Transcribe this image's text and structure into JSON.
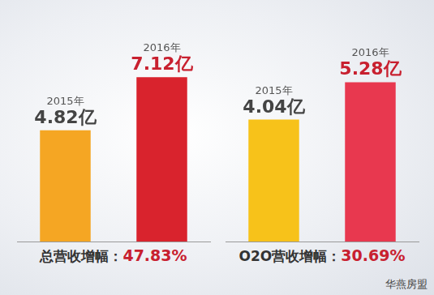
{
  "chart_data": [
    {
      "type": "bar",
      "categories": [
        "2015年",
        "2016年"
      ],
      "values": [
        4.82,
        7.12
      ],
      "value_labels": [
        "4.82亿",
        "7.12亿"
      ],
      "colors": [
        "#f5a623",
        "#d9232d"
      ],
      "ylim": [
        0,
        8.5
      ],
      "grid": false,
      "tick_labels": false,
      "data_labels": true,
      "annotation": "总营收增幅：47.83%"
    },
    {
      "type": "bar",
      "categories": [
        "2015年",
        "2016年"
      ],
      "values": [
        4.04,
        5.28
      ],
      "value_labels": [
        "4.04亿",
        "5.28亿"
      ],
      "colors": [
        "#f7c21a",
        "#e8384f"
      ],
      "ylim": [
        0,
        6.5
      ],
      "grid": false,
      "tick_labels": false,
      "data_labels": true,
      "annotation": "O2O营收增幅：30.69%"
    }
  ],
  "watermark": "华燕房盟"
}
